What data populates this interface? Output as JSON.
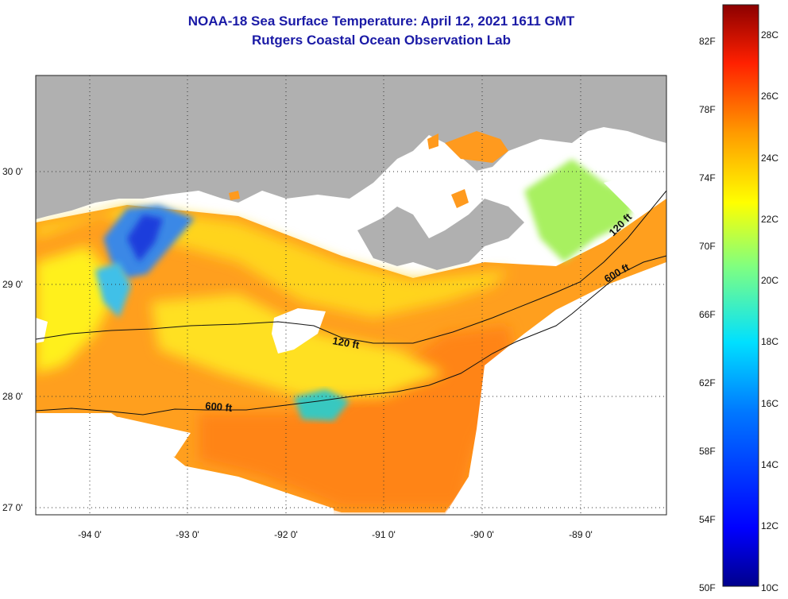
{
  "title": {
    "line1": "NOAA-18 Sea Surface Temperature:  April 12, 2021 1611 GMT",
    "line2": "Rutgers Coastal Ocean Observation Lab"
  },
  "map": {
    "lon_labels": [
      "-94 0'",
      "-93 0'",
      "-92 0'",
      "-91 0'",
      "-90 0'",
      "-89 0'"
    ],
    "lat_labels": [
      "30 0'",
      "29 0'",
      "28 0'",
      "27 0'"
    ],
    "contours": [
      {
        "label": "120 ft"
      },
      {
        "label": "600 ft"
      },
      {
        "label": "120 ft"
      },
      {
        "label": "600 ft"
      }
    ],
    "colors": {
      "land": "#b0b0b0",
      "nodata": "#ffffff",
      "warm": "#ff8a14",
      "mid": "#ffd21e",
      "cool": "#2c7be0"
    }
  },
  "colorbar": {
    "fahrenheit_labels": [
      "82F",
      "78F",
      "74F",
      "70F",
      "66F",
      "62F",
      "58F",
      "54F",
      "50F"
    ],
    "celsius_labels": [
      "28C",
      "26C",
      "24C",
      "22C",
      "20C",
      "18C",
      "16C",
      "14C",
      "12C",
      "10C"
    ]
  }
}
